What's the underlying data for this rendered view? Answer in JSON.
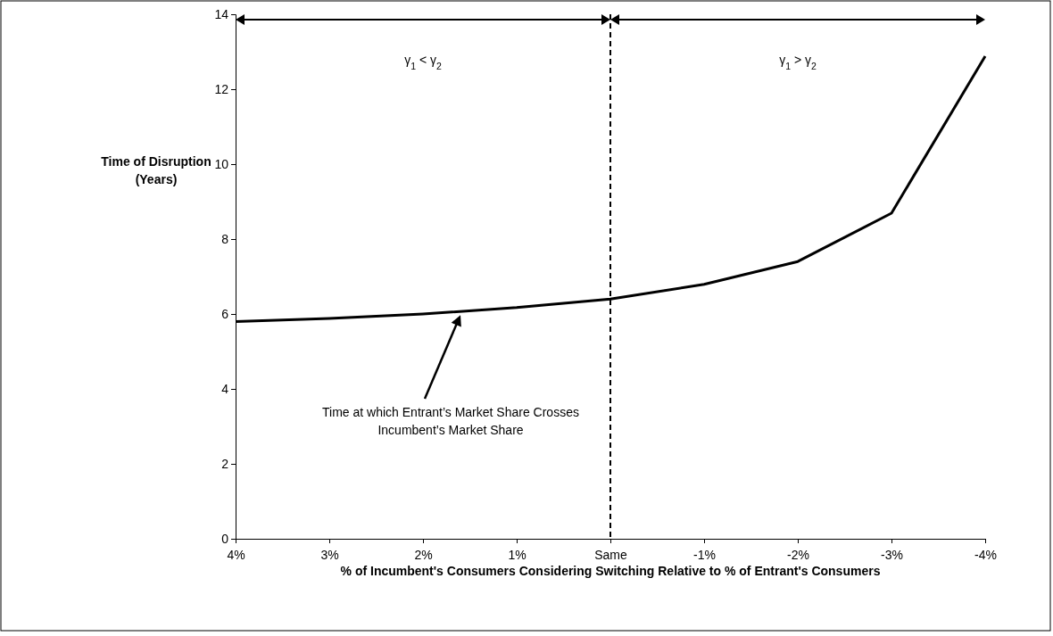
{
  "chart_data": {
    "type": "line",
    "xlabel": "% of Incumbent's Consumers Considering Switching Relative to % of Entrant's Consumers",
    "ylabel": "Time of Disruption (Years)",
    "categories": [
      "4%",
      "3%",
      "2%",
      "1%",
      "Same",
      "-1%",
      "-2%",
      "-3%",
      "-4%"
    ],
    "series": [
      {
        "color": "#000000",
        "values": [
          5.8,
          5.88,
          6.0,
          6.17,
          6.4,
          6.79,
          7.4,
          8.69,
          12.88
        ]
      }
    ],
    "ylim": [
      0,
      14
    ],
    "yticks": [
      0,
      2,
      4,
      6,
      8,
      10,
      12,
      14
    ],
    "grid": false,
    "marker": "none",
    "line_style": "solid",
    "ref_lines": [
      {
        "axis": "x",
        "value": "Same",
        "line_style": "dashed",
        "color": "#000000"
      }
    ],
    "annotations": [
      "γ$_{1}$ < γ$_{2}$",
      "γ$_{1}$ > γ$_{2}$",
      "Time at which Entrant’s Market Share Crosses Incumbent’s Market Share"
    ]
  }
}
